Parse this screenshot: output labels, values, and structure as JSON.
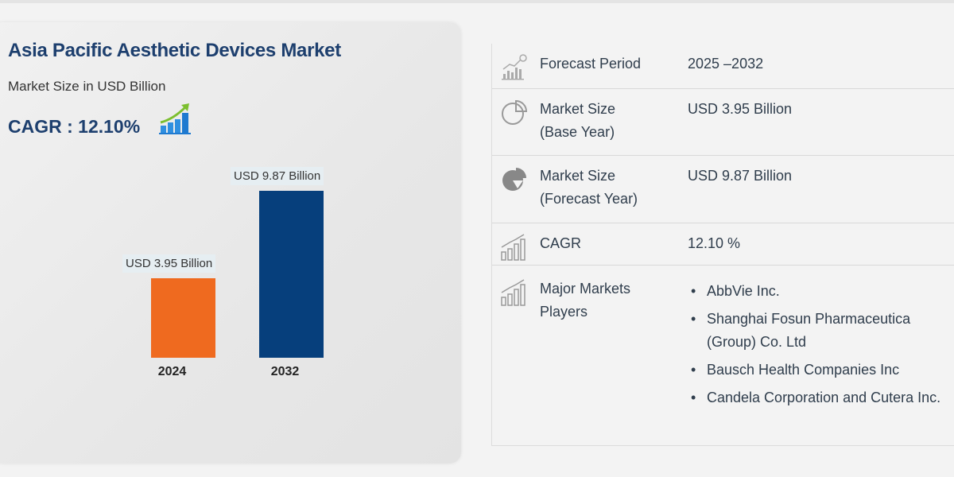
{
  "header": {
    "title": "Asia Pacific Aesthetic Devices Market",
    "subtitle": "Market Size in USD Billion",
    "cagr": "CAGR : 12.10%",
    "cagr_icon": "growth-bar-chart-icon"
  },
  "chart_data": {
    "type": "bar",
    "categories": [
      "2024",
      "2032"
    ],
    "values": [
      3.95,
      9.87
    ],
    "data_labels": [
      "USD 3.95 Billion",
      "USD 9.87 Billion"
    ],
    "colors": [
      "#ef6a1f",
      "#063f7c"
    ],
    "ylabel": "Market Size in USD Billion"
  },
  "table": {
    "rows": [
      {
        "icon": "forecast-chart-icon",
        "label": "Forecast Period",
        "value": "2025 –2032"
      },
      {
        "icon": "pie-outline-icon",
        "label_line1": "Market Size",
        "label_line2": "(Base Year)",
        "value": "USD 3.95 Billion"
      },
      {
        "icon": "pie-filled-icon",
        "label_line1": "Market Size",
        "label_line2": "(Forecast Year)",
        "value": "USD 9.87 Billion"
      },
      {
        "icon": "bar-growth-icon",
        "label": "CAGR",
        "value": "12.10 %"
      },
      {
        "icon": "bar-growth-icon",
        "label_line1": "Major Markets",
        "label_line2": "Players",
        "players": [
          "AbbVie Inc.",
          "Shanghai Fosun Pharmaceutica (Group) Co. Ltd",
          "Bausch Health Companies Inc",
          "Candela Corporation and Cutera Inc."
        ]
      }
    ]
  }
}
